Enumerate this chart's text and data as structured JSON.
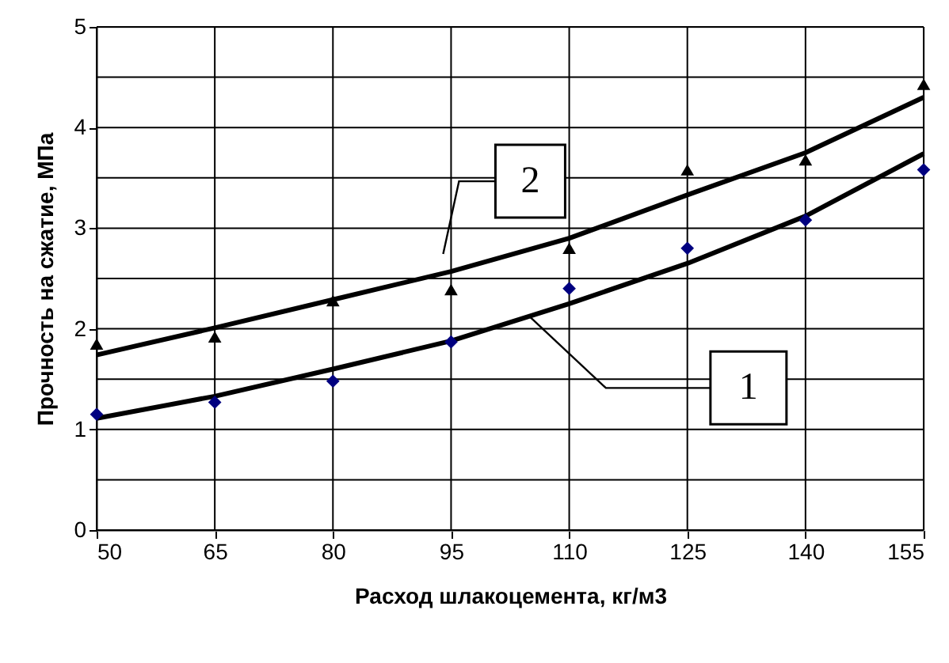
{
  "chart_data": {
    "type": "scatter",
    "xlabel": "Расход шлакоцемента, кг/м3",
    "ylabel": "Прочность на сжатие, МПа",
    "x": [
      50,
      65,
      80,
      95,
      110,
      125,
      140,
      155
    ],
    "series": [
      {
        "color": "#000080",
        "marker": "diamond",
        "values": [
          1.15,
          1.27,
          1.48,
          1.87,
          2.4,
          2.8,
          3.08,
          3.58
        ]
      },
      {
        "color": "#000000",
        "marker": "triangle",
        "values": [
          1.85,
          1.92,
          2.28,
          2.39,
          2.8,
          3.58,
          3.68,
          4.43
        ]
      },
      {
        "type": "line",
        "color": "#000000",
        "line_style": "solid",
        "values": [
          1.11,
          1.33,
          1.6,
          1.88,
          2.25,
          2.65,
          3.12,
          3.74
        ]
      },
      {
        "type": "line",
        "color": "#000000",
        "line_style": "solid",
        "values": [
          1.74,
          2.01,
          2.29,
          2.57,
          2.9,
          3.33,
          3.75,
          4.3
        ]
      }
    ],
    "annotations": [
      {
        "text": "1",
        "x": 105,
        "y": 2.12
      },
      {
        "text": "2",
        "x": 95,
        "y": 2.57
      }
    ],
    "xlim": [
      50,
      155
    ],
    "xticks": [
      50,
      65,
      80,
      95,
      110,
      125,
      140,
      155
    ],
    "ylim": [
      0,
      5
    ],
    "yticks": [
      0,
      {
        "value": 0.5,
        "label": null
      },
      1,
      {
        "value": 1.5,
        "label": null
      },
      2,
      {
        "value": 2.5,
        "label": null
      },
      3,
      {
        "value": 3.5,
        "label": null
      },
      4,
      {
        "value": 4.5,
        "label": null
      },
      5
    ],
    "grid": true
  }
}
